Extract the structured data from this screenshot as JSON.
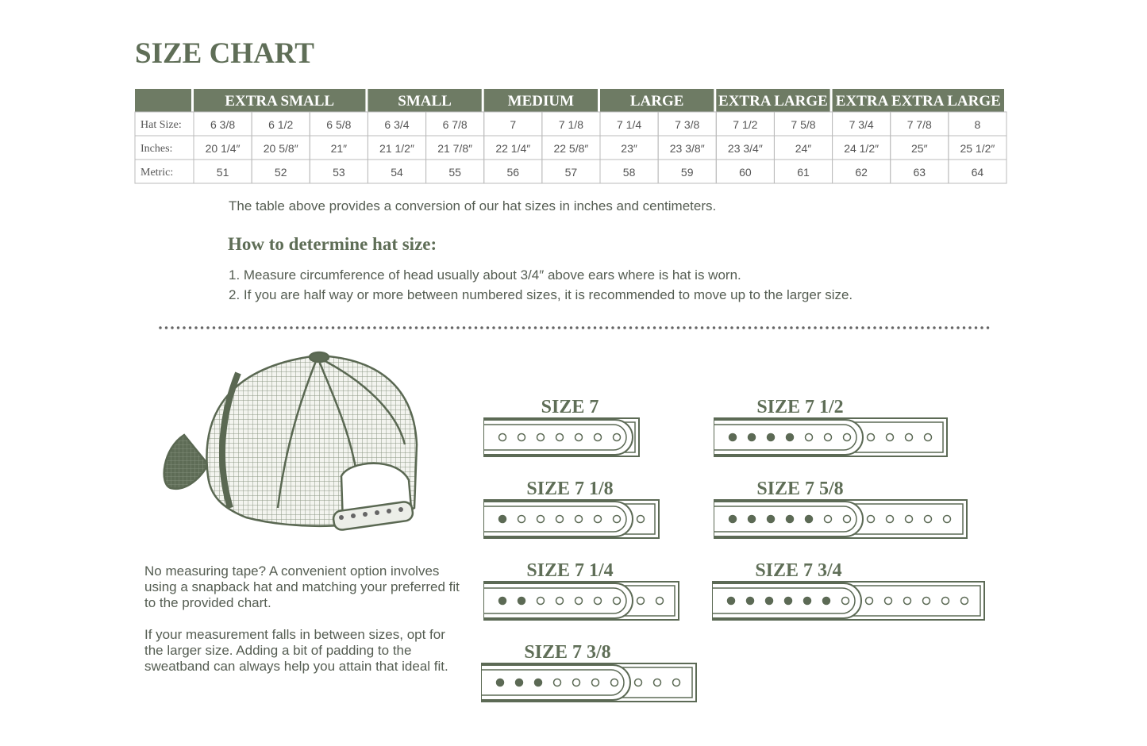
{
  "title": "SIZE CHART",
  "table": {
    "row_labels": [
      "Hat Size:",
      "Inches:",
      "Metric:"
    ],
    "groups": [
      {
        "label": "EXTRA SMALL",
        "hat_size": [
          "6 3/8",
          "6 1/2",
          "6 5/8"
        ],
        "inches": [
          "20 1/4″",
          "20 5/8″",
          "21″"
        ],
        "metric": [
          "51",
          "52",
          "53"
        ]
      },
      {
        "label": "SMALL",
        "hat_size": [
          "6 3/4",
          "6 7/8"
        ],
        "inches": [
          "21 1/2″",
          "21 7/8″"
        ],
        "metric": [
          "54",
          "55"
        ]
      },
      {
        "label": "MEDIUM",
        "hat_size": [
          "7",
          "7 1/8"
        ],
        "inches": [
          "22 1/4″",
          "22 5/8″"
        ],
        "metric": [
          "56",
          "57"
        ]
      },
      {
        "label": "LARGE",
        "hat_size": [
          "7 1/4",
          "7 3/8"
        ],
        "inches": [
          "23″",
          "23 3/8″"
        ],
        "metric": [
          "58",
          "59"
        ]
      },
      {
        "label": "EXTRA LARGE",
        "hat_size": [
          "7 1/2",
          "7 5/8"
        ],
        "inches": [
          "23 3/4″",
          "24″"
        ],
        "metric": [
          "60",
          "61"
        ]
      },
      {
        "label": "EXTRA EXTRA LARGE",
        "hat_size": [
          "7 3/4",
          "7 7/8",
          "8"
        ],
        "inches": [
          "24 1/2″",
          "25″",
          "25 1/2″"
        ],
        "metric": [
          "62",
          "63",
          "64"
        ]
      }
    ]
  },
  "note": "The table above provides a conversion of our hat sizes in inches and centimeters.",
  "howto": {
    "heading": "How to determine hat size:",
    "steps": [
      "1. Measure circumference of head usually about 3/4″ above ears where is hat is worn.",
      "2. If you are half way or more between numbered sizes, it is recommended to move up to the larger size."
    ]
  },
  "tips": [
    "No measuring tape? A convenient option involves using a snapback hat and matching your preferred fit to the provided chart.",
    "If your measurement falls in between sizes, opt for the larger size. Adding a bit of padding to the sweatband can always help you attain that ideal fit."
  ],
  "sizes": [
    "SIZE 7",
    "SIZE 7 1/8",
    "SIZE 7 1/4",
    "SIZE 7 3/8",
    "SIZE 7 1/2",
    "SIZE 7 5/8",
    "SIZE 7 3/4"
  ]
}
